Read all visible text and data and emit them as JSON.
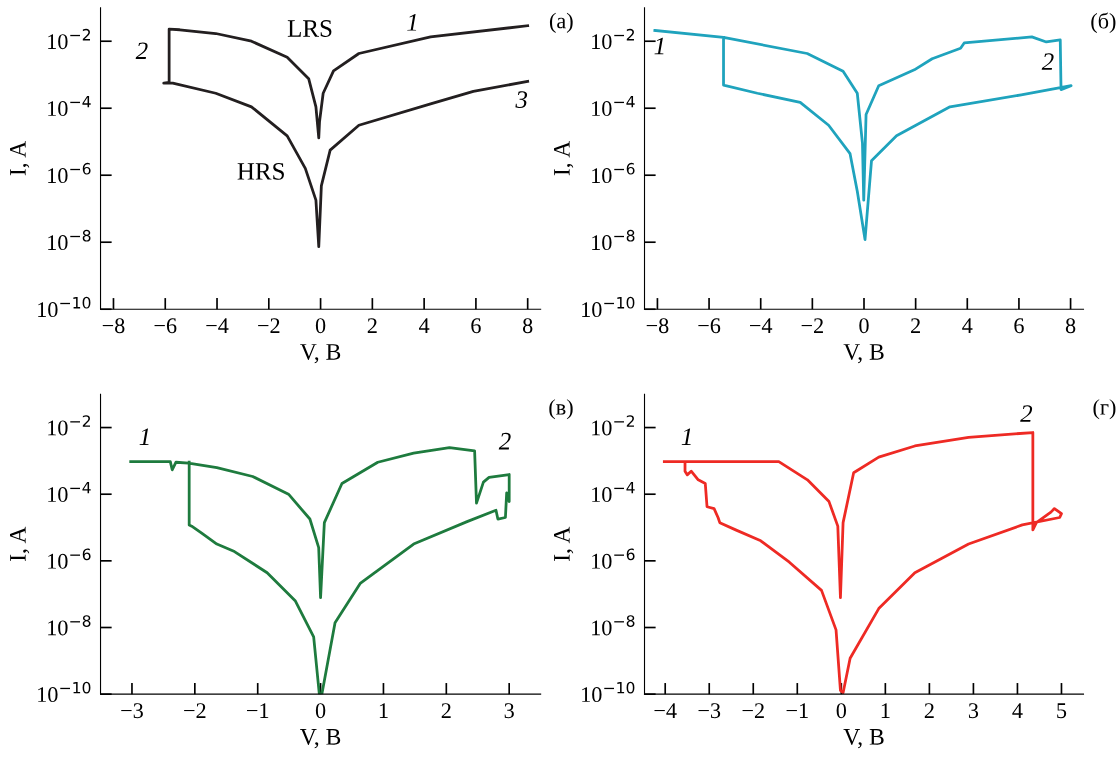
{
  "chart_data": [
    {
      "type": "line",
      "title": "(а)",
      "xlabel": "V, В",
      "ylabel": "I, A",
      "log": "y",
      "grid": false,
      "line_style": "solid",
      "marker": "none",
      "xlim": [
        -8.5,
        8.5
      ],
      "xticks": [
        {
          "value": -8,
          "label": "−8"
        },
        {
          "value": -6,
          "label": "−6"
        },
        {
          "value": -4,
          "label": "−4"
        },
        {
          "value": -2,
          "label": "−2"
        },
        0,
        2,
        4,
        6,
        8
      ],
      "ylim": [
        1e-10,
        0.1
      ],
      "yticks": [
        {
          "value": 1e-10,
          "label": "10$^{−10}$"
        },
        {
          "value": 1e-08,
          "label": "10$^{−8}$"
        },
        {
          "value": 1e-06,
          "label": "10$^{−6}$"
        },
        {
          "value": 0.0001,
          "label": "10$^{−4}$"
        },
        {
          "value": 0.01,
          "label": "10$^{−2}$"
        }
      ],
      "annotations": [
        "LRS",
        "HRS",
        "1",
        "2",
        "3"
      ],
      "series": [
        {
          "color": "#231f20",
          "x": [
            8,
            4.25,
            1.48,
            0.5,
            0.1,
            -0.04,
            -0.07,
            -0.18,
            -0.46,
            -1.29,
            -2.67,
            -4.05,
            -5.44,
            -5.85,
            -5.85,
            -6.06,
            -5.71,
            -4.05,
            -2.67,
            -1.29,
            -0.59,
            -0.18,
            -0.07,
            0.03,
            0.37,
            1.48,
            4.25,
            5.9,
            8
          ],
          "values": [
            0.029,
            0.0135,
            0.0043,
            0.0013,
            0.00028,
            4e-05,
            1.3e-05,
            0.00011,
            0.00076,
            0.0033,
            0.01,
            0.017,
            0.022,
            0.023,
            0.00059,
            0.00056,
            0.00056,
            0.00028,
            0.00011,
            1.5e-05,
            1.6e-06,
            1.8e-07,
            7.4e-09,
            4.8e-07,
            5.6e-06,
            3.1e-05,
            0.000135,
            0.00032,
            0.00063
          ]
        }
      ]
    },
    {
      "type": "line",
      "title": "(б)",
      "xlabel": "V, В",
      "ylabel": "I, A",
      "log": "y",
      "grid": false,
      "line_style": "solid",
      "marker": "none",
      "xlim": [
        -8.5,
        8.5
      ],
      "xticks": [
        {
          "value": -8,
          "label": "−8"
        },
        {
          "value": -6,
          "label": "−6"
        },
        {
          "value": -4,
          "label": "−4"
        },
        {
          "value": -2,
          "label": "−2"
        },
        0,
        2,
        4,
        6,
        8
      ],
      "ylim": [
        1e-10,
        0.1
      ],
      "yticks": [
        {
          "value": 1e-10,
          "label": "10$^{−10}$"
        },
        {
          "value": 1e-08,
          "label": "10$^{−8}$"
        },
        {
          "value": 1e-06,
          "label": "10$^{−6}$"
        },
        {
          "value": 0.0001,
          "label": "10$^{−4}$"
        },
        {
          "value": 0.01,
          "label": "10$^{−2}$"
        }
      ],
      "annotations": [
        "1",
        "2"
      ],
      "series": [
        {
          "color": "#1fa3bd",
          "x": [
            -8.1,
            -5.44,
            -2.2,
            -0.81,
            -0.26,
            -0.06,
            -0.01,
            0.08,
            0.57,
            1.95,
            2.64,
            3.74,
            3.88,
            6.5,
            7.06,
            7.6,
            7.63,
            8.02,
            6.09,
            3.33,
            1.26,
            0.29,
            0.04,
            -0.26,
            -0.54,
            -1.37,
            -2.47,
            -4.13,
            -5.44,
            -5.44
          ],
          "values": [
            0.021,
            0.013,
            0.0043,
            0.00126,
            0.00028,
            9.1e-06,
            1.8e-07,
            6.5e-05,
            0.00047,
            0.0014,
            0.003,
            0.0062,
            0.0089,
            0.0135,
            0.0095,
            0.011,
            0.00036,
            0.00047,
            0.00025,
            0.00011,
            1.5e-05,
            2.7e-06,
            1.2e-08,
            3.3e-07,
            4.4e-06,
            3.1e-05,
            0.00015,
            0.00028,
            0.00049,
            0.013
          ]
        }
      ]
    },
    {
      "type": "line",
      "title": "(в)",
      "xlabel": "V, В",
      "ylabel": "I, A",
      "log": "y",
      "grid": false,
      "line_style": "solid",
      "marker": "none",
      "xlim": [
        -3.5,
        3.5
      ],
      "xticks": [
        {
          "value": -3,
          "label": "−3"
        },
        {
          "value": -2,
          "label": "−2"
        },
        {
          "value": -1,
          "label": "−1"
        },
        0,
        1,
        2,
        3
      ],
      "ylim": [
        1e-10,
        0.1
      ],
      "yticks": [
        {
          "value": 1e-10,
          "label": "10$^{−10}$"
        },
        {
          "value": 1e-08,
          "label": "10$^{−8}$"
        },
        {
          "value": 1e-06,
          "label": "10$^{−6}$"
        },
        {
          "value": 0.0001,
          "label": "10$^{−4}$"
        },
        {
          "value": 0.01,
          "label": "10$^{−2}$"
        }
      ],
      "annotations": [
        "1",
        "2"
      ],
      "series": [
        {
          "color": "#1e7b3e",
          "x": [
            -3.02,
            -2.39,
            -2.36,
            -2.3,
            -2.1,
            -1.65,
            -1.08,
            -0.51,
            -0.17,
            -0.03,
            0,
            0.06,
            0.34,
            0.91,
            1.48,
            2.05,
            2.45,
            2.48,
            2.59,
            2.68,
            3.0,
            3.0,
            2.96,
            2.94,
            2.82,
            2.79,
            2.33,
            1.48,
            0.63,
            0.23,
            0.02,
            -0.02,
            -0.11,
            -0.4,
            -0.85,
            -1.37,
            -1.65,
            -1.88,
            -2.05,
            -2.09,
            -2.09
          ],
          "values": [
            0.00095,
            0.00095,
            0.00054,
            0.00091,
            0.00085,
            0.00063,
            0.00034,
            0.0001,
            1.8e-05,
            2.5e-06,
            7.9e-08,
            1.4e-05,
            0.00021,
            0.00091,
            0.0017,
            0.0025,
            0.002,
            5.4e-05,
            0.00023,
            0.00032,
            0.00039,
            6e-05,
            0.00011,
            2e-05,
            1.8e-05,
            3.3e-05,
            1.5e-05,
            3.2e-06,
            2.1e-07,
            1.4e-08,
            1e-10,
            1e-10,
            5.2e-09,
            6.2e-08,
            4.4e-07,
            1.9e-06,
            3.2e-06,
            6.6e-06,
            1.1e-05,
            1.2e-05,
            0.00091
          ]
        }
      ]
    },
    {
      "type": "line",
      "title": "(г)",
      "xlabel": "V, В",
      "ylabel": "I, A",
      "log": "y",
      "grid": false,
      "line_style": "solid",
      "marker": "none",
      "xlim": [
        -4.47,
        5.5
      ],
      "xticks": [
        {
          "value": -4,
          "label": "−4"
        },
        {
          "value": -3,
          "label": "−3"
        },
        {
          "value": -2,
          "label": "−2"
        },
        {
          "value": -1,
          "label": "−1"
        },
        0,
        1,
        2,
        3,
        4,
        5
      ],
      "ylim": [
        1e-10,
        0.1
      ],
      "yticks": [
        {
          "value": 1e-10,
          "label": "10$^{−10}$"
        },
        {
          "value": 1e-08,
          "label": "10$^{−8}$"
        },
        {
          "value": 1e-06,
          "label": "10$^{−6}$"
        },
        {
          "value": 0.0001,
          "label": "10$^{−4}$"
        },
        {
          "value": 0.01,
          "label": "10$^{−2}$"
        }
      ],
      "annotations": [
        "1",
        "2"
      ],
      "series": [
        {
          "color": "#ee2a24",
          "x": [
            -4.02,
            -1.42,
            -0.77,
            -0.28,
            -0.08,
            -0.02,
            0.04,
            0.28,
            0.85,
            1.67,
            2.89,
            4.35,
            4.35,
            4.43,
            4.76,
            4.84,
            5.0,
            4.96,
            4.11,
            2.89,
            1.67,
            0.85,
            0.2,
            0.04,
            -0.02,
            -0.12,
            -0.45,
            -1.18,
            -1.83,
            -2.4,
            -2.76,
            -2.8,
            -2.89,
            -3.05,
            -3.09,
            -3.25,
            -3.41,
            -3.5,
            -3.55,
            -3.55
          ],
          "values": [
            0.00095,
            0.00095,
            0.00027,
            6e-05,
            1.1e-05,
            7.9e-08,
            1.4e-05,
            0.00044,
            0.0013,
            0.0028,
            0.0051,
            0.0071,
            8.5e-06,
            1.4e-05,
            2.9e-05,
            3.7e-05,
            2.6e-05,
            2e-05,
            1.2e-05,
            3.2e-06,
            4.4e-07,
            3.7e-08,
            1.2e-09,
            1.1e-10,
            1.3e-10,
            8.5e-09,
            1.3e-07,
            9.1e-07,
            4e-06,
            8.5e-06,
            1.4e-05,
            2e-05,
            3.7e-05,
            4.2e-05,
            0.00021,
            0.00027,
            0.00049,
            0.00038,
            0.00049,
            0.00095
          ]
        }
      ]
    }
  ]
}
